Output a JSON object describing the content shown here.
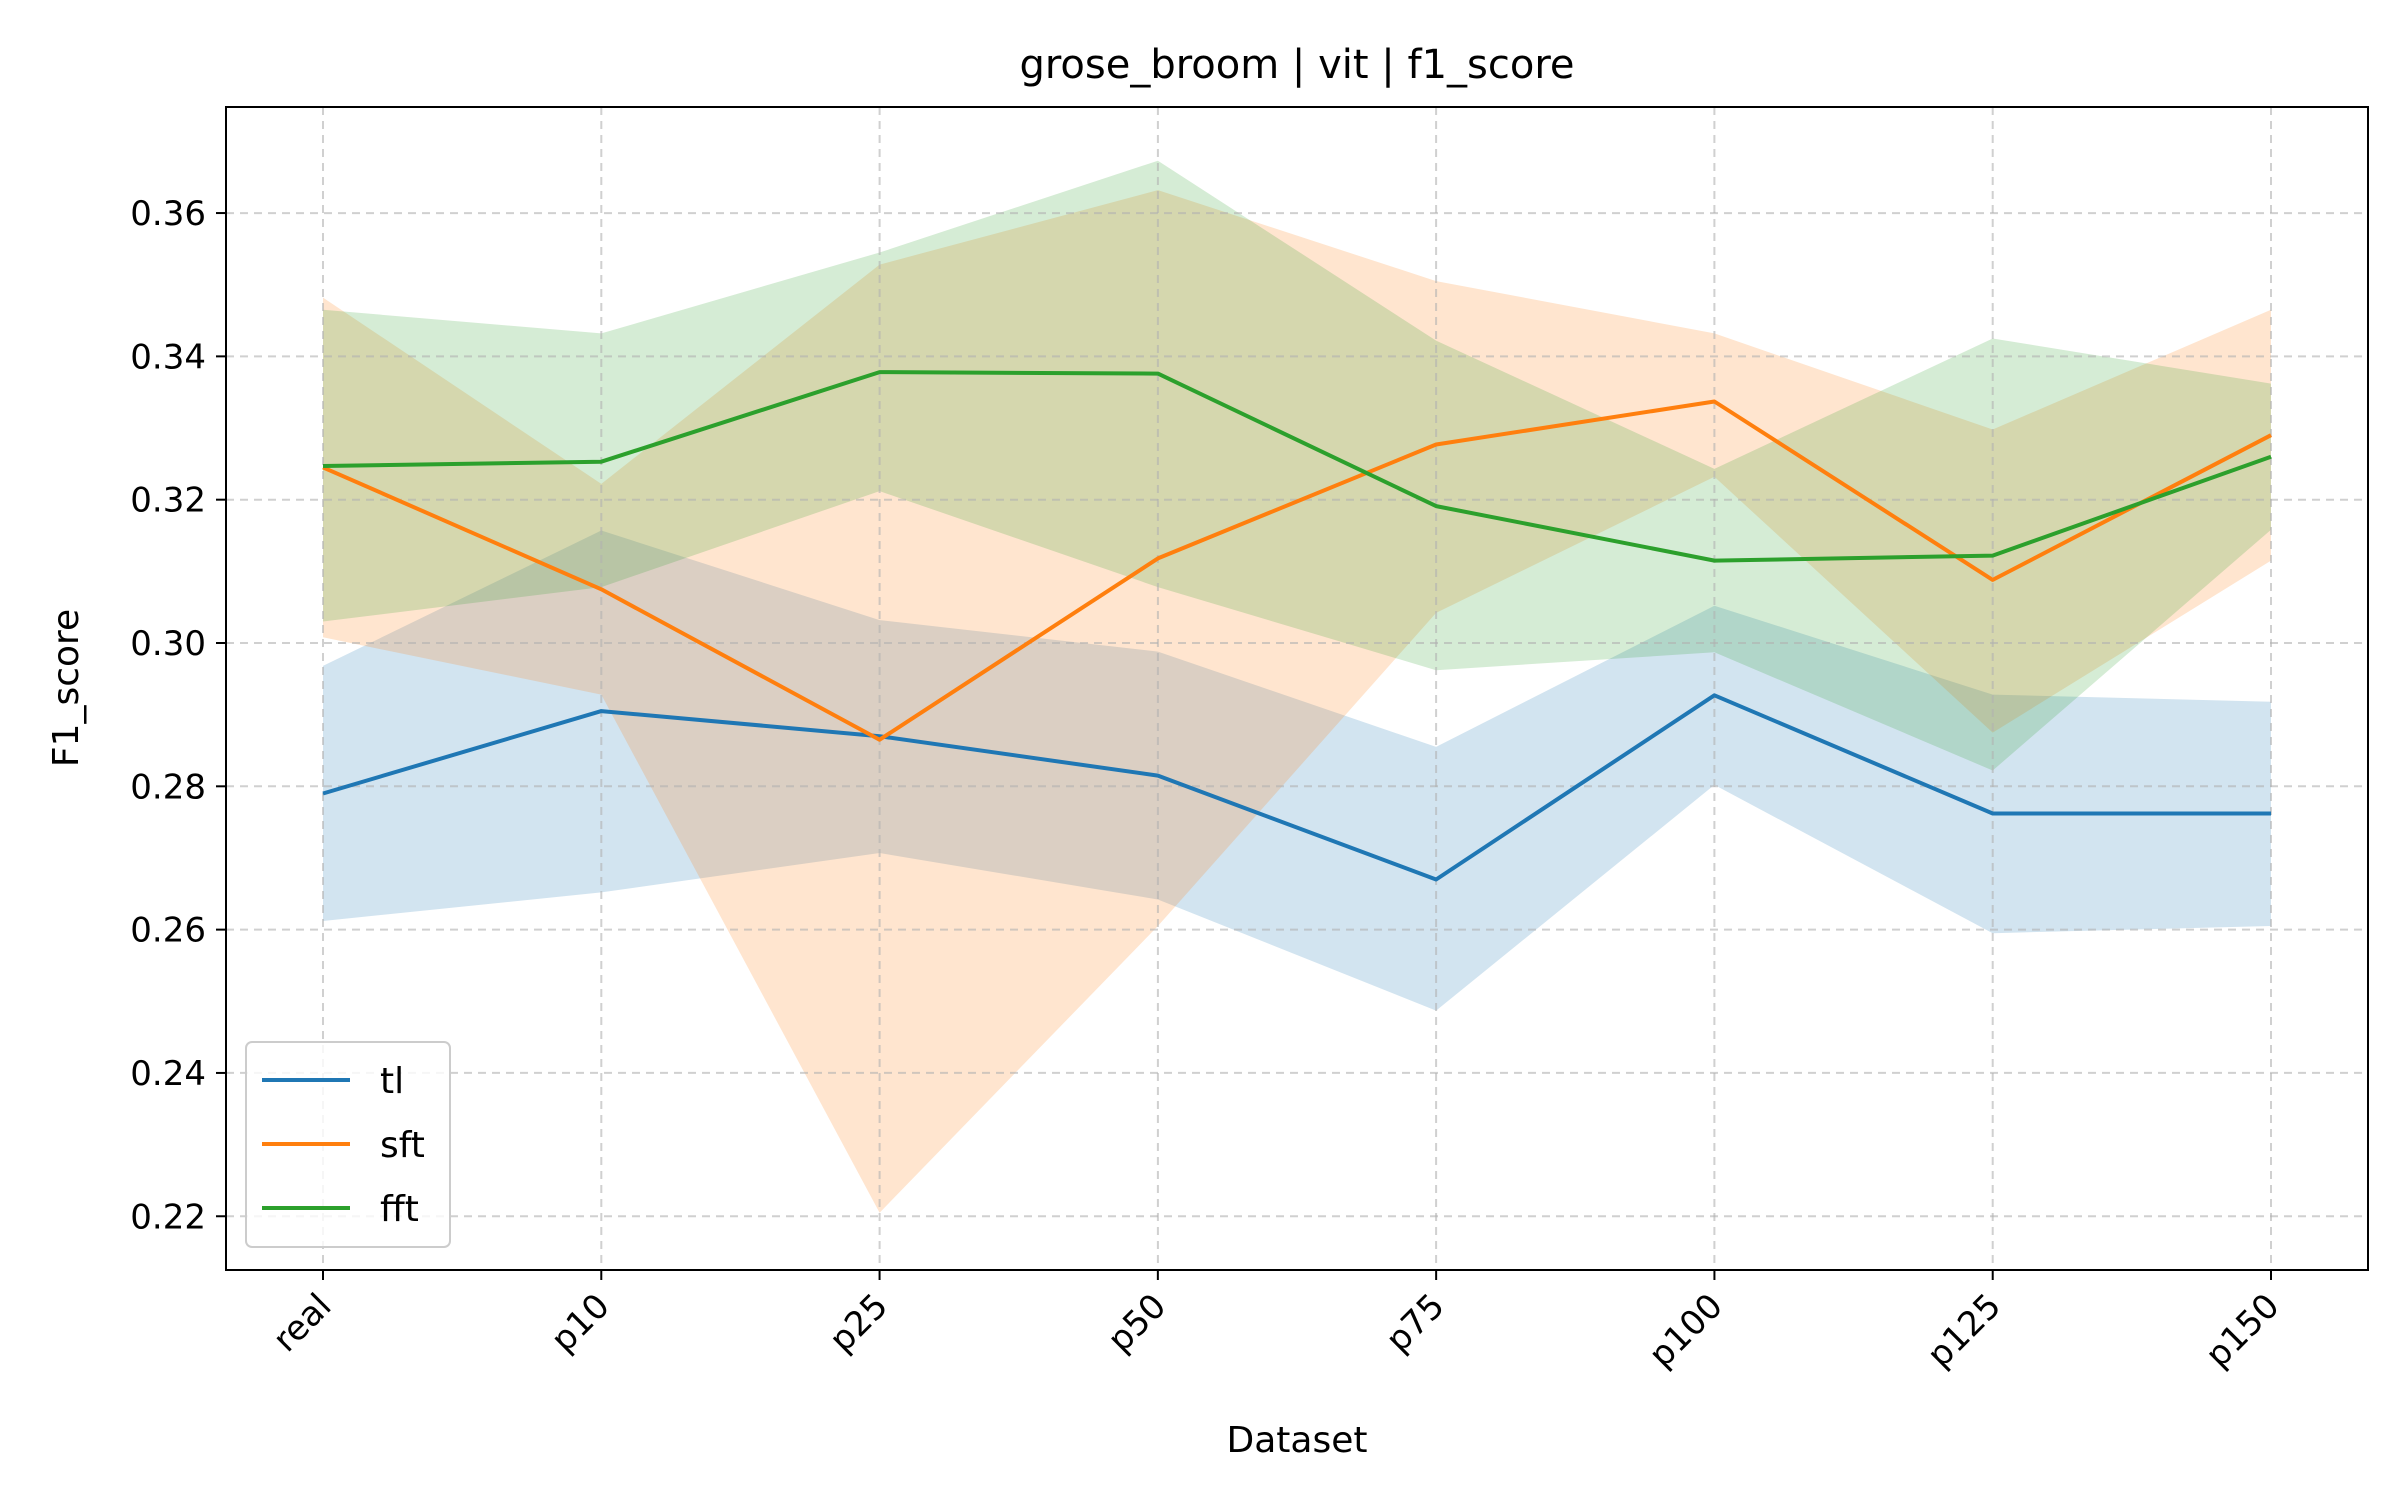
{
  "chart_data": {
    "type": "line",
    "title": "grose_broom | vit | f1_score",
    "xlabel": "Dataset",
    "ylabel": "F1_score",
    "categories": [
      "real",
      "p10",
      "p25",
      "p50",
      "p75",
      "p100",
      "p125",
      "p150"
    ],
    "ylim": [
      0.2125,
      0.3748
    ],
    "yticks": [
      0.22,
      0.24,
      0.26,
      0.28,
      0.3,
      0.32,
      0.34,
      0.36
    ],
    "ytick_labels": [
      "0.22",
      "0.24",
      "0.26",
      "0.28",
      "0.30",
      "0.32",
      "0.34",
      "0.36"
    ],
    "grid": true,
    "legend_position": "lower-left",
    "series": [
      {
        "name": "tl",
        "color": "#1f77b4",
        "values": [
          0.279,
          0.2905,
          0.287,
          0.2815,
          0.267,
          0.2927,
          0.2762,
          0.2762
        ],
        "lower": [
          0.2612,
          0.2652,
          0.2707,
          0.2642,
          0.2487,
          0.2802,
          0.2595,
          0.2605
        ],
        "upper": [
          0.2968,
          0.3157,
          0.3032,
          0.2988,
          0.2855,
          0.3052,
          0.2928,
          0.2918
        ]
      },
      {
        "name": "sft",
        "color": "#ff7f0e",
        "values": [
          0.3245,
          0.3075,
          0.2865,
          0.3118,
          0.3277,
          0.3337,
          0.3088,
          0.329
        ],
        "lower": [
          0.3008,
          0.2928,
          0.2205,
          0.2605,
          0.3042,
          0.3232,
          0.2875,
          0.3115
        ],
        "upper": [
          0.3482,
          0.3222,
          0.3528,
          0.3632,
          0.3505,
          0.3432,
          0.3298,
          0.3465
        ]
      },
      {
        "name": "fft",
        "color": "#2ca02c",
        "values": [
          0.3247,
          0.3253,
          0.3378,
          0.3376,
          0.3191,
          0.3115,
          0.3122,
          0.326
        ],
        "lower": [
          0.303,
          0.3078,
          0.3212,
          0.3078,
          0.2962,
          0.2987,
          0.2822,
          0.3158
        ],
        "upper": [
          0.3465,
          0.3432,
          0.3545,
          0.3673,
          0.3422,
          0.3243,
          0.3425,
          0.3362
        ]
      }
    ]
  }
}
